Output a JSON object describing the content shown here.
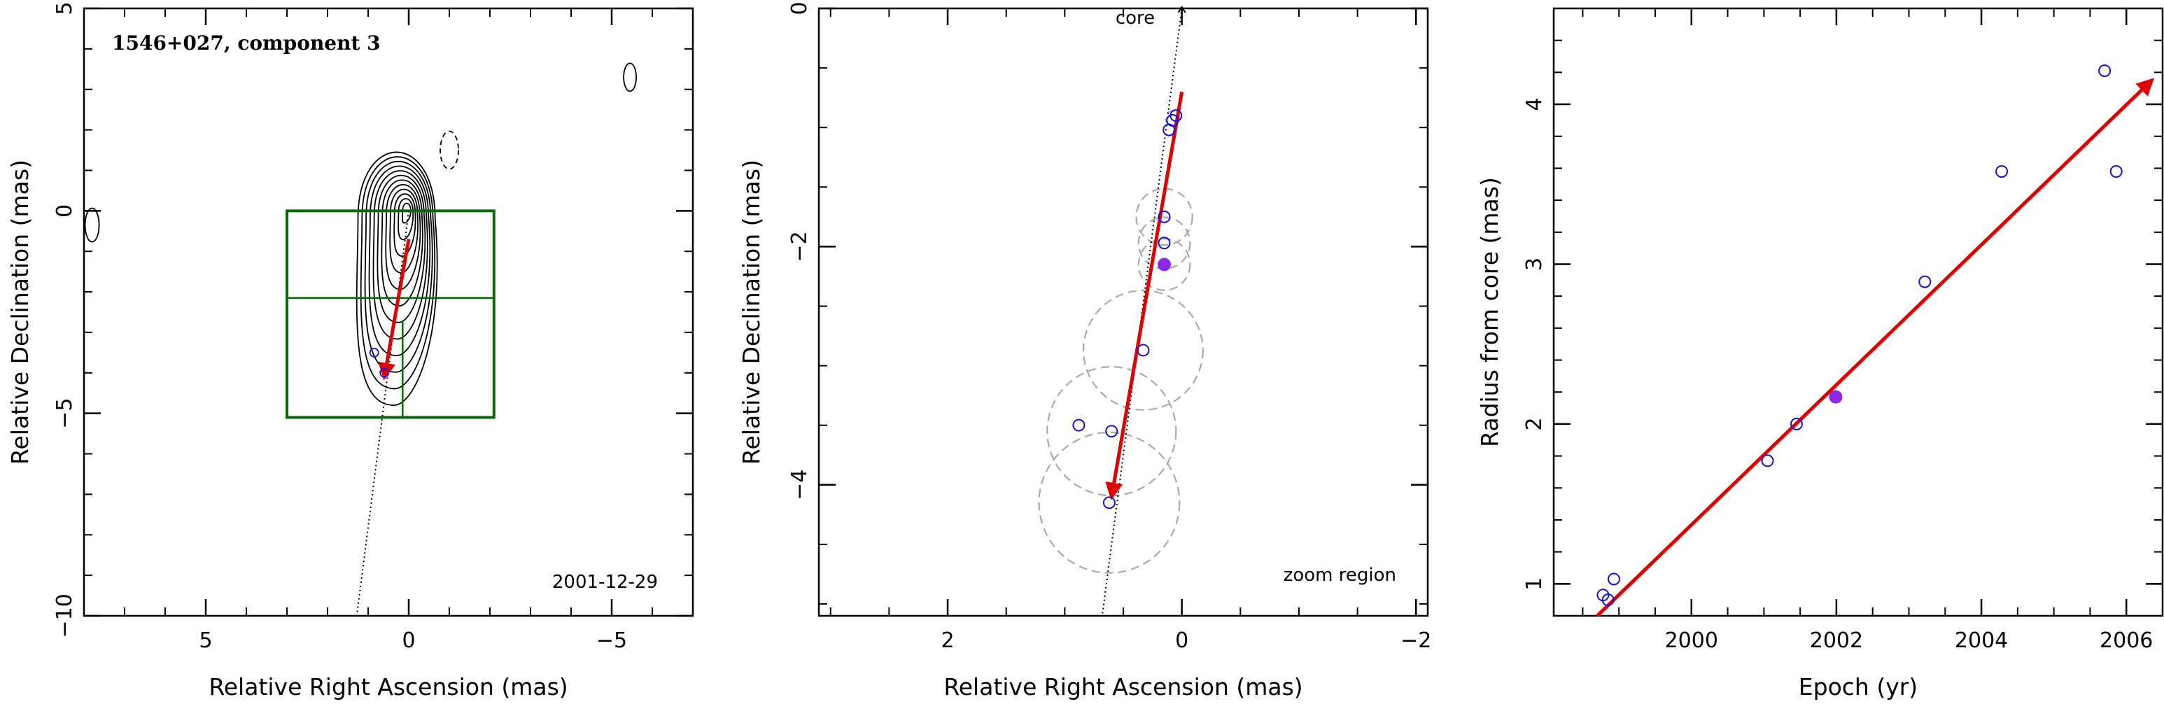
{
  "chart_data": [
    {
      "type": "contour",
      "title": "1546+027, component 3",
      "date_label": "2001-12-29",
      "xlabel": "Relative Right Ascension (mas)",
      "ylabel": "Relative Declination (mas)",
      "xlim": [
        8,
        -7
      ],
      "ylim": [
        -10,
        5
      ],
      "xticks": [
        5,
        0,
        -5
      ],
      "yticks": [
        5,
        0,
        -5,
        -10
      ],
      "tick_labels_x": [
        "5",
        "0",
        "−5"
      ],
      "tick_labels_y": [
        "5",
        "0",
        "−5",
        "−10"
      ],
      "zoom_box": {
        "x": [
          3.0,
          -2.1
        ],
        "y": [
          0.0,
          -5.1
        ],
        "inner_y": -2.15,
        "inner_x": 0.15
      },
      "component_points": [
        {
          "x": 0.85,
          "y": -3.5
        },
        {
          "x": 0.6,
          "y": -4.0
        }
      ],
      "trajectory_line": {
        "x": [
          0.0,
          1.28
        ],
        "y": [
          0.0,
          -10.0
        ]
      },
      "motion_arrow": {
        "from": {
          "x": 0.0,
          "y": -0.7
        },
        "to": {
          "x": 0.6,
          "y": -4.1
        },
        "color": "#e00000"
      },
      "colors": {
        "contour": "#000000",
        "zoom_box": "#0a6a0a",
        "arrow": "#e00000",
        "points": "#1010e0"
      }
    },
    {
      "type": "scatter",
      "title": "",
      "region_label": "zoom region",
      "core_label": "core",
      "xlabel": "Relative Right Ascension (mas)",
      "ylabel": "Relative Declination (mas)",
      "xlim": [
        3.1,
        -2.1
      ],
      "ylim": [
        -5.1,
        0.0
      ],
      "xticks": [
        2,
        0,
        -2
      ],
      "yticks": [
        0,
        -2,
        -4
      ],
      "tick_labels_x": [
        "2",
        "0",
        "−2"
      ],
      "tick_labels_y": [
        "0",
        "−2",
        "−4"
      ],
      "points": [
        {
          "x": 0.05,
          "y": -0.9
        },
        {
          "x": 0.08,
          "y": -0.94
        },
        {
          "x": 0.11,
          "y": -1.02
        },
        {
          "x": 0.15,
          "y": -1.75
        },
        {
          "x": 0.15,
          "y": -1.97
        },
        {
          "x": 0.33,
          "y": -2.87
        },
        {
          "x": 0.88,
          "y": -3.5
        },
        {
          "x": 0.6,
          "y": -3.55
        },
        {
          "x": 0.62,
          "y": -4.15
        }
      ],
      "highlight_point": {
        "x": 0.15,
        "y": -2.15
      },
      "uncertainty_circles": [
        {
          "x": 0.15,
          "y": -1.75,
          "r": 0.24
        },
        {
          "x": 0.15,
          "y": -1.97,
          "r": 0.22
        },
        {
          "x": 0.15,
          "y": -2.15,
          "r": 0.22
        },
        {
          "x": 0.33,
          "y": -2.87,
          "r": 0.51
        },
        {
          "x": 0.6,
          "y": -3.55,
          "r": 0.55
        },
        {
          "x": 0.62,
          "y": -4.15,
          "r": 0.6
        },
        {
          "x": 0.08,
          "y": -0.92,
          "r": 0.06
        }
      ],
      "trajectory_line": {
        "x": [
          0.0,
          0.68
        ],
        "y": [
          0.0,
          -5.1
        ]
      },
      "motion_arrow": {
        "from": {
          "x": 0.0,
          "y": -0.7
        },
        "to": {
          "x": 0.6,
          "y": -4.1
        }
      },
      "colors": {
        "points": "#1010e0",
        "highlight": "#8a2be2",
        "circles": "#aaaaaa",
        "arrow": "#e00000"
      }
    },
    {
      "type": "scatter",
      "title": "",
      "xlabel": "Epoch (yr)",
      "ylabel": "Radius from core (mas)",
      "xlim": [
        1998.1,
        2006.5
      ],
      "ylim": [
        0.8,
        4.6
      ],
      "xticks": [
        2000,
        2002,
        2004,
        2006
      ],
      "yticks": [
        1,
        2,
        3,
        4
      ],
      "tick_labels_x": [
        "2000",
        "2002",
        "2004",
        "2006"
      ],
      "tick_labels_y": [
        "1",
        "2",
        "3",
        "4"
      ],
      "points": [
        {
          "x": 1998.78,
          "y": 0.93
        },
        {
          "x": 1998.85,
          "y": 0.9
        },
        {
          "x": 1998.93,
          "y": 1.03
        },
        {
          "x": 2001.05,
          "y": 1.77
        },
        {
          "x": 2001.45,
          "y": 2.0
        },
        {
          "x": 2003.22,
          "y": 2.89
        },
        {
          "x": 2004.28,
          "y": 3.58
        },
        {
          "x": 2005.7,
          "y": 4.21
        },
        {
          "x": 2005.86,
          "y": 3.58
        }
      ],
      "highlight_point": {
        "x": 2001.99,
        "y": 2.17
      },
      "fit_arrow": {
        "from": {
          "x": 1998.7,
          "y": 0.8
        },
        "to": {
          "x": 2006.35,
          "y": 4.15
        }
      },
      "colors": {
        "points": "#1010e0",
        "highlight": "#8a2be2",
        "arrow": "#e00000"
      }
    }
  ]
}
